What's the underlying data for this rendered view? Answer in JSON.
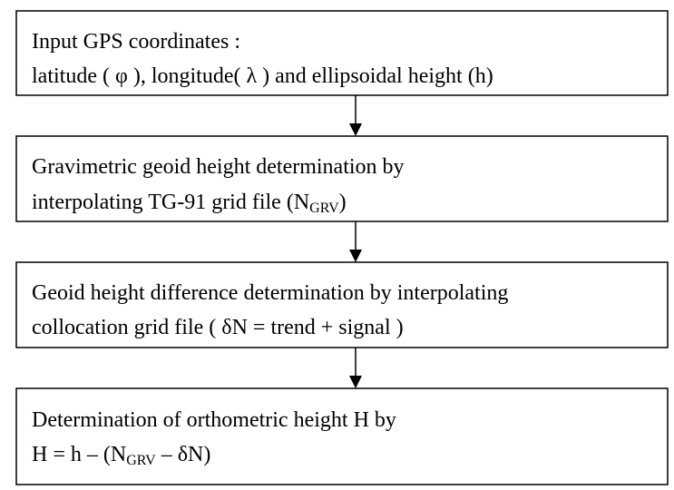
{
  "nodes": [
    {
      "lines": [
        [
          "Input GPS coordinates :"
        ],
        [
          "latitude ( φ ), longitude( λ ) and ellipsoidal height (h)"
        ]
      ]
    },
    {
      "lines": [
        [
          "Gravimetric geoid height determination by"
        ],
        [
          "interpolating TG-91 grid file (N",
          "GRV",
          ")"
        ]
      ]
    },
    {
      "lines": [
        [
          "Geoid height difference determination by interpolating"
        ],
        [
          "collocation grid file ( δN = trend + signal )"
        ]
      ]
    },
    {
      "lines": [
        [
          "Determination of orthometric height H by"
        ],
        [
          "H = h – (N",
          "GRV",
          " – δN)"
        ]
      ]
    }
  ]
}
